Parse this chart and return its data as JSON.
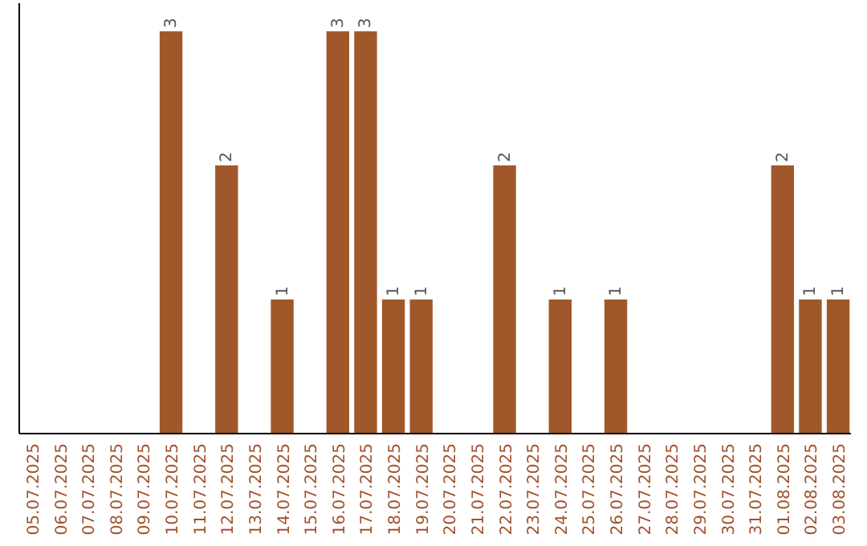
{
  "chart_data": {
    "type": "bar",
    "categories": [
      "05.07.2025",
      "06.07.2025",
      "07.07.2025",
      "08.07.2025",
      "09.07.2025",
      "10.07.2025",
      "11.07.2025",
      "12.07.2025",
      "13.07.2025",
      "14.07.2025",
      "15.07.2025",
      "16.07.2025",
      "17.07.2025",
      "18.07.2025",
      "19.07.2025",
      "20.07.2025",
      "21.07.2025",
      "22.07.2025",
      "23.07.2025",
      "24.07.2025",
      "25.07.2025",
      "26.07.2025",
      "27.07.2025",
      "28.07.2025",
      "29.07.2025",
      "30.07.2025",
      "31.07.2025",
      "01.08.2025",
      "02.08.2025",
      "03.08.2025"
    ],
    "values": [
      0,
      0,
      0,
      0,
      0,
      3,
      0,
      2,
      0,
      1,
      0,
      3,
      3,
      1,
      1,
      0,
      0,
      2,
      0,
      1,
      0,
      1,
      0,
      0,
      0,
      0,
      0,
      2,
      1,
      1
    ],
    "value_labels": [
      null,
      null,
      null,
      null,
      null,
      "3",
      null,
      "2",
      null,
      "1",
      null,
      "3",
      "3",
      "1",
      "1",
      null,
      null,
      "2",
      null,
      "1",
      null,
      "1",
      null,
      null,
      null,
      null,
      null,
      "2",
      "1",
      "1"
    ],
    "color": "#a0582a",
    "tick_labels": "x"
  }
}
